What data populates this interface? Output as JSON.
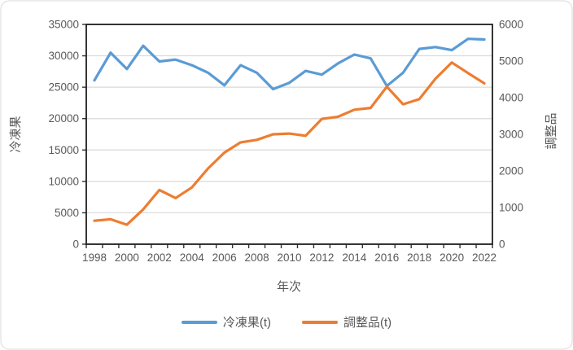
{
  "chart_data": {
    "type": "line",
    "title": "",
    "x": [
      1998,
      1999,
      2000,
      2001,
      2002,
      2003,
      2004,
      2005,
      2006,
      2007,
      2008,
      2009,
      2010,
      2011,
      2012,
      2013,
      2014,
      2015,
      2016,
      2017,
      2018,
      2019,
      2020,
      2021,
      2022
    ],
    "series": [
      {
        "name": "冷凍果(t)",
        "axis": "left",
        "color": "#5B9BD5",
        "values": [
          26100,
          30500,
          27900,
          31600,
          29100,
          29400,
          28500,
          27300,
          25300,
          28500,
          27300,
          24700,
          25700,
          27600,
          27000,
          28800,
          30200,
          29600,
          25200,
          27300,
          31100,
          31400,
          30900,
          32700,
          32600
        ]
      },
      {
        "name": "調整品(t)",
        "axis": "right",
        "color": "#ED7D31",
        "values": [
          640,
          680,
          530,
          950,
          1480,
          1260,
          1550,
          2070,
          2500,
          2780,
          2850,
          3000,
          3020,
          2960,
          3420,
          3480,
          3670,
          3720,
          4300,
          3820,
          3960,
          4520,
          4960,
          4670,
          4390
        ]
      }
    ],
    "left_axis": {
      "title": "冷凍果",
      "min": 0,
      "max": 35000,
      "step": 5000,
      "tick_labels": [
        "0",
        "5000",
        "10000",
        "15000",
        "20000",
        "25000",
        "30000",
        "35000"
      ]
    },
    "right_axis": {
      "title": "調整品",
      "min": 0,
      "max": 6000,
      "step": 1000,
      "tick_labels": [
        "0",
        "1000",
        "2000",
        "3000",
        "4000",
        "5000",
        "6000"
      ]
    },
    "x_axis": {
      "title": "年次",
      "tick_labels": [
        1998,
        2000,
        2002,
        2004,
        2006,
        2008,
        2010,
        2012,
        2014,
        2016,
        2018,
        2020,
        2022
      ]
    },
    "legend": {
      "position": "bottom",
      "entries": [
        "冷凍果(t)",
        "調整品(t)"
      ]
    },
    "grid": true,
    "colors": {
      "gridline": "#D9D9D9",
      "plot_border": "#1f1f1f",
      "tick": "#333333",
      "text": "#595959",
      "frame_border": "#D9D9D9",
      "background": "#FFFFFF"
    }
  }
}
